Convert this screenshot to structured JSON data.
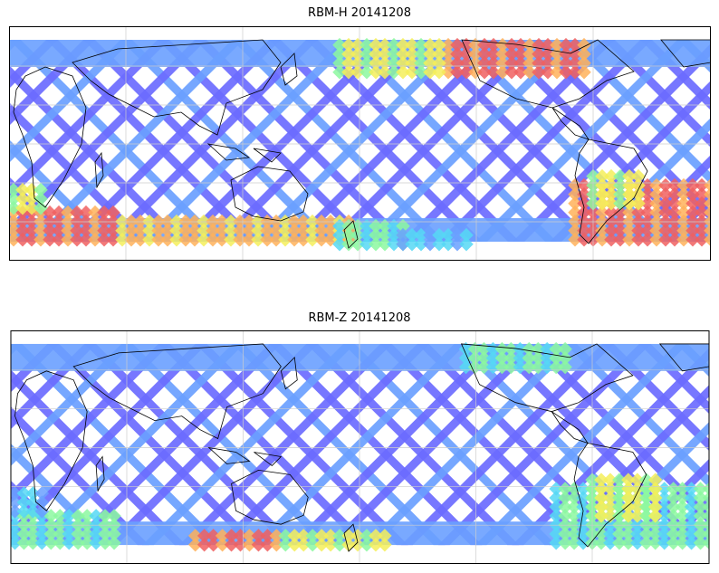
{
  "panels": [
    {
      "title": "RBM-H 20141208",
      "colormap": [
        "#6b6bff",
        "#6aa0ff",
        "#56d8f4",
        "#8cf8a0",
        "#f4ee5a",
        "#ffb25a",
        "#f06060",
        "#d85a5a"
      ],
      "intensity_note": "high values near polar latitudes, strongest in south"
    },
    {
      "title": "RBM-Z 20141208",
      "colormap": [
        "#6b6bff",
        "#6aa0ff",
        "#56d8f4",
        "#8cf8a0",
        "#f4ee5a",
        "#ffb25a",
        "#f06060",
        "#d85a5a"
      ],
      "intensity_note": "mostly low values with moderate highs in southern band"
    }
  ],
  "colors": {
    "coastline": "#000000",
    "gridline": "#cccccc",
    "frame": "#000000"
  }
}
